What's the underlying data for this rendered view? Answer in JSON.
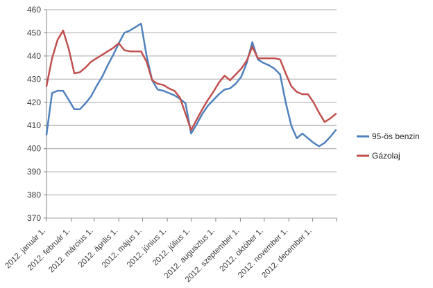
{
  "chart_data": {
    "type": "line",
    "title": "",
    "x_tick_labels": [
      "2012. január 1.",
      "2012. február 1.",
      "2012. március 1.",
      "2012. április 1.",
      "2012. május 1.",
      "2012. június 1.",
      "2012. július 1.",
      "2012. augusztus 1.",
      "2012. szeptember 1.",
      "2012. október 1.",
      "2012. november 1.",
      "2012. december 1."
    ],
    "y_ticks": [
      370,
      380,
      390,
      400,
      410,
      420,
      430,
      440,
      450,
      460
    ],
    "ylim": [
      370,
      460
    ],
    "x_unit": "weekly points, Jan–Dec 2012",
    "grid": "horizontal",
    "legend_position": "right",
    "series": [
      {
        "id": "benzin",
        "name": "95-ös benzin",
        "color": "#4F81BD",
        "values": [
          406,
          424,
          425,
          425,
          421,
          417,
          417,
          419.5,
          422.5,
          427,
          431,
          436,
          440.5,
          445.5,
          450,
          451,
          452.5,
          454,
          440,
          429.5,
          425.5,
          425,
          424,
          423,
          421.5,
          419.5,
          406.5,
          410.5,
          415,
          418.5,
          421,
          423.5,
          425.5,
          426,
          428,
          431,
          437,
          446,
          438.5,
          437,
          436,
          434.5,
          432,
          420,
          410,
          404.5,
          406.5,
          404.5,
          402.5,
          401,
          402.5,
          405,
          408
        ]
      },
      {
        "id": "gazolaj",
        "name": "Gázolaj",
        "color": "#C0504D",
        "values": [
          427,
          439,
          447,
          451,
          443,
          432.5,
          433,
          435,
          437.5,
          439,
          440.5,
          442,
          443.5,
          445.5,
          442.5,
          442,
          442,
          442,
          437.5,
          429.5,
          428,
          427.5,
          426,
          425,
          422,
          415,
          408,
          412.5,
          417,
          421,
          424.5,
          428.5,
          431.5,
          429.5,
          432,
          434.5,
          438,
          444,
          439,
          439,
          439,
          439,
          438.5,
          432.5,
          427,
          424.5,
          423.5,
          423.5,
          420,
          415.5,
          411.5,
          413,
          415
        ]
      }
    ]
  },
  "colors": {
    "gridline": "#A6A6A6",
    "axis": "#808080",
    "background": "#FFFFFF"
  }
}
